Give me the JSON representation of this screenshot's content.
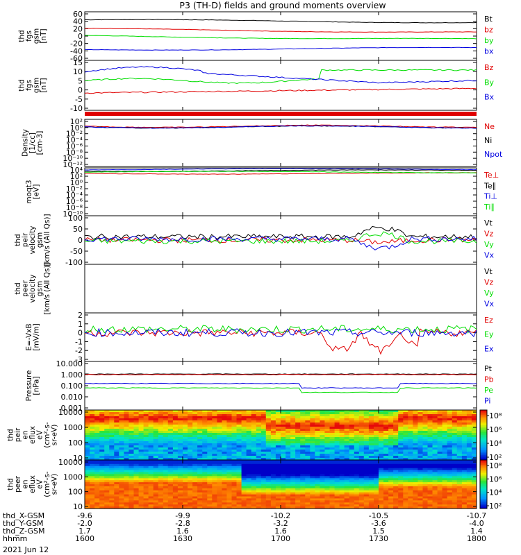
{
  "title": "P3 (TH-D) fields and ground moments overview",
  "date_label": "2021 Jun 12",
  "ephemeris": {
    "rows": [
      {
        "label": "thd_X-GSM",
        "values": [
          "-9.6",
          "-9.9",
          "-10.2",
          "-10.5",
          "-10.7"
        ]
      },
      {
        "label": "thd_Y-GSM",
        "values": [
          "-2.0",
          "-2.8",
          "-3.2",
          "-3.6",
          "-4.0"
        ]
      },
      {
        "label": "thd_Z-GSM",
        "values": [
          "1.7",
          "1.6",
          "1.6",
          "1.5",
          "1.4"
        ]
      },
      {
        "label": "hhmm",
        "values": [
          "1600",
          "1630",
          "1700",
          "1730",
          "1800"
        ]
      }
    ]
  },
  "colors": {
    "black": "#000000",
    "red": "#e00000",
    "green": "#00dd00",
    "blue": "#0000e0"
  },
  "chart_data": [
    {
      "id": "p1",
      "type": "line",
      "ylabel": [
        "thd",
        "fgs",
        "gsm",
        "[nT]"
      ],
      "yticks": [
        "60",
        "40",
        "20",
        "0",
        "-20",
        "-40",
        "-60"
      ],
      "ylim": [
        -60,
        60
      ],
      "series": [
        {
          "name": "Bt",
          "color": "black",
          "start": 44,
          "end": 37
        },
        {
          "name": "bz",
          "color": "red",
          "start": 19,
          "end": 10
        },
        {
          "name": "by",
          "color": "green",
          "start": 0,
          "end": -9
        },
        {
          "name": "bx",
          "color": "blue",
          "start": -37,
          "end": -32
        }
      ]
    },
    {
      "id": "p2",
      "type": "line",
      "ylabel": [
        "thd",
        "fgs",
        "gsm",
        "[nT]"
      ],
      "yticks": [
        "15",
        "10",
        "5",
        "0",
        "-5",
        "-10"
      ],
      "ylim": [
        -15,
        15
      ],
      "series": [
        {
          "name": "Bz",
          "color": "red",
          "start": -5,
          "end": -2
        },
        {
          "name": "By",
          "color": "green",
          "start": 4,
          "end": 8
        },
        {
          "name": "Bx",
          "color": "blue",
          "start": 8,
          "end": 4
        }
      ]
    },
    {
      "id": "p3",
      "type": "line",
      "ylabel": [
        "Density",
        "[1/cc]",
        "[cm-3]"
      ],
      "yticks": [
        "10²",
        "10⁰",
        "10⁻²",
        "10⁻⁴",
        "10⁻⁶",
        "10⁻⁸",
        "10⁻¹⁰",
        "10⁻¹²"
      ],
      "series": [
        {
          "name": "Ne",
          "color": "red"
        },
        {
          "name": "Ni",
          "color": "black"
        },
        {
          "name": "Npot",
          "color": "blue"
        }
      ]
    },
    {
      "id": "p4",
      "type": "line",
      "ylabel": [
        "moqt3",
        "[eV]"
      ],
      "yticks": [
        "10⁴",
        "10²",
        "10⁰",
        "10⁻²",
        "10⁻⁴",
        "10⁻⁶",
        "10⁻⁸",
        "10⁻¹⁰"
      ],
      "series": [
        {
          "name": "Te⊥",
          "color": "red"
        },
        {
          "name": "Te∥",
          "color": "black"
        },
        {
          "name": "Ti⊥",
          "color": "blue"
        },
        {
          "name": "Ti∥",
          "color": "green"
        }
      ]
    },
    {
      "id": "p5",
      "type": "line",
      "ylabel": [
        "thd",
        "peir",
        "velocity",
        "gsm",
        "[km/s (All Qs)]"
      ],
      "yticks": [
        "100",
        "50",
        "0",
        "-50",
        "-100"
      ],
      "ylim": [
        -100,
        100
      ],
      "series": [
        {
          "name": "Vt",
          "color": "black"
        },
        {
          "name": "Vz",
          "color": "red"
        },
        {
          "name": "Vy",
          "color": "green"
        },
        {
          "name": "Vx",
          "color": "blue"
        }
      ]
    },
    {
      "id": "p6",
      "type": "line",
      "ylabel": [
        "thd",
        "peer",
        "velocity",
        "gsm",
        "[km/s (All Qs)]"
      ],
      "yticks": [],
      "series": [
        {
          "name": "Vt",
          "color": "black"
        },
        {
          "name": "Vz",
          "color": "red"
        },
        {
          "name": "Vy",
          "color": "green"
        },
        {
          "name": "Vx",
          "color": "blue"
        }
      ]
    },
    {
      "id": "p7",
      "type": "line",
      "ylabel": [
        "E=-VxB",
        "[mV/m]"
      ],
      "yticks": [
        "2",
        "1",
        "0",
        "-1",
        "-2",
        "-3"
      ],
      "ylim": [
        -3,
        2
      ],
      "series": [
        {
          "name": "Ez",
          "color": "red"
        },
        {
          "name": "Ey",
          "color": "green"
        },
        {
          "name": "Ex",
          "color": "blue"
        }
      ]
    },
    {
      "id": "p8",
      "type": "line",
      "ylabel": [
        "Pressure",
        "[nPa]"
      ],
      "yticks": [
        "10.000",
        "1.000",
        "0.100",
        "0.010",
        "0.001"
      ],
      "ylog": true,
      "ylim": [
        0.001,
        10
      ],
      "series": [
        {
          "name": "Pt",
          "color": "black"
        },
        {
          "name": "Pb",
          "color": "red"
        },
        {
          "name": "Pe",
          "color": "green"
        },
        {
          "name": "Pi",
          "color": "blue"
        }
      ]
    },
    {
      "id": "p9",
      "type": "heatmap",
      "ylabel": [
        "thd",
        "peir",
        "en",
        "eflux",
        "eV",
        "(cm²-s-",
        "sr-eV)"
      ],
      "yticks": [
        "10000",
        "1000",
        "100",
        "10"
      ],
      "colorbar": {
        "ticks": [
          "10⁸",
          "10⁶",
          "10⁴",
          "10²"
        ],
        "label": "[eV/(cm²-s-sr-eV)] (All Qs)"
      }
    },
    {
      "id": "p10",
      "type": "heatmap",
      "ylabel": [
        "thd",
        "peer",
        "en",
        "eflux",
        "eV",
        "(cm²-s-",
        "sr-eV)"
      ],
      "yticks": [
        "10000",
        "1000",
        "100",
        "10"
      ],
      "colorbar": {
        "ticks": [
          "10⁸",
          "10⁶",
          "10⁴",
          "10²"
        ],
        "label": "[eV/(cm²-s-sr-eV)] (All Qs)"
      }
    }
  ]
}
